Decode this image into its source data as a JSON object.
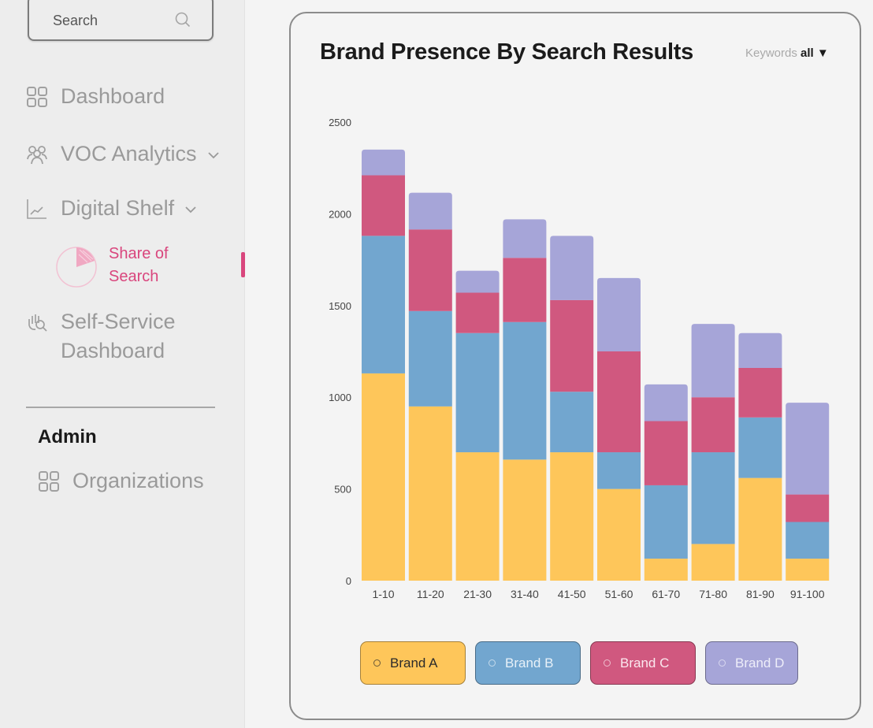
{
  "sidebar": {
    "search": {
      "placeholder": "Search",
      "icon": "search-icon"
    },
    "items": [
      {
        "label": "Dashboard",
        "icon": "grid-icon"
      },
      {
        "label": "VOC Analytics",
        "icon": "users-icon",
        "expandable": true
      },
      {
        "label": "Digital Shelf",
        "icon": "line-chart-icon",
        "expandable": true
      },
      {
        "label": "Self-Service Dashboard",
        "label_line1": "Self-Service",
        "label_line2": "Dashboard",
        "icon": "hand-search-icon"
      }
    ],
    "sub_item": {
      "label_line1": "Share of",
      "label_line2": "Search",
      "icon": "pie-chart-icon",
      "active": true
    },
    "admin": {
      "title": "Admin",
      "items": [
        {
          "label": "Organizations",
          "icon": "grid-icon"
        }
      ]
    },
    "accent_color": "#d9467d"
  },
  "card": {
    "title": "Brand Presence By Search Results",
    "filter": {
      "label": "Keywords",
      "value": "all",
      "icon": "caret-down-icon"
    }
  },
  "chart_data": {
    "type": "bar",
    "stacked": true,
    "title": "Brand Presence By Search Results",
    "xlabel": "",
    "ylabel": "",
    "ylim": [
      0,
      2500
    ],
    "yticks": [
      0,
      500,
      1000,
      1500,
      2000,
      2500
    ],
    "grid": false,
    "legend_position": "bottom",
    "categories": [
      "1-10",
      "11-20",
      "21-30",
      "31-40",
      "41-50",
      "51-60",
      "61-70",
      "71-80",
      "81-90",
      "91-100"
    ],
    "series": [
      {
        "name": "Brand A",
        "color": "#fec65a",
        "text_color": "#2b2b2b",
        "values": [
          1130,
          950,
          700,
          660,
          700,
          500,
          120,
          200,
          560,
          120
        ]
      },
      {
        "name": "Brand B",
        "color": "#72a6cf",
        "text_color": "#e8f1f8",
        "values": [
          750,
          520,
          650,
          750,
          330,
          200,
          400,
          500,
          330,
          200
        ]
      },
      {
        "name": "Brand C",
        "color": "#d0587f",
        "text_color": "#fbe8ef",
        "values": [
          330,
          445,
          220,
          350,
          500,
          550,
          350,
          300,
          270,
          150
        ]
      },
      {
        "name": "Brand D",
        "color": "#a6a5d8",
        "text_color": "#eeeef9",
        "values": [
          140,
          200,
          120,
          210,
          350,
          400,
          200,
          400,
          190,
          500
        ]
      }
    ]
  }
}
